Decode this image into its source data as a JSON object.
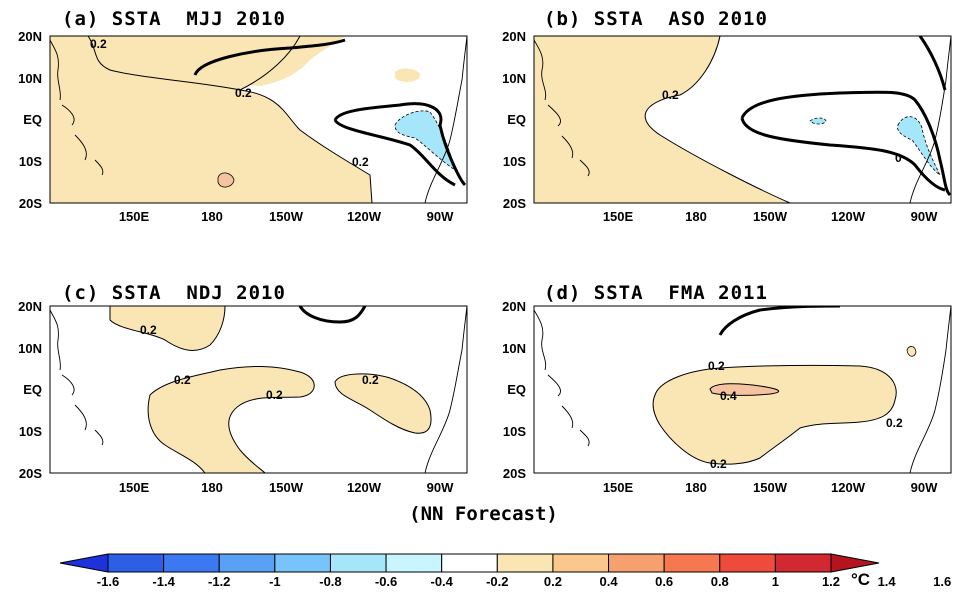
{
  "panels": [
    {
      "id": "a",
      "title": "(a) SSTA  MJJ 2010",
      "contour_labels": [
        "0.2",
        "0.2",
        "0.2"
      ]
    },
    {
      "id": "b",
      "title": "(b) SSTA  ASO 2010",
      "contour_labels": [
        "0.2",
        "0"
      ]
    },
    {
      "id": "c",
      "title": "(c) SSTA  NDJ 2010",
      "contour_labels": [
        "0.2",
        "0.2",
        "0.2",
        "0.2"
      ]
    },
    {
      "id": "d",
      "title": "(d) SSTA  FMA 2011",
      "contour_labels": [
        "0.2",
        "0.4",
        "0.2",
        "0.2"
      ]
    }
  ],
  "lat_labels": [
    "20N",
    "10N",
    "EQ",
    "10S",
    "20S"
  ],
  "lon_labels": [
    "150E",
    "180",
    "150W",
    "120W",
    "90W"
  ],
  "footer": "(NN Forecast)",
  "colorbar": {
    "labels": [
      "-1.6",
      "-1.4",
      "-1.2",
      "-1",
      "-0.8",
      "-0.6",
      "-0.4",
      "-0.2",
      "0.2",
      "0.4",
      "0.6",
      "0.8",
      "1",
      "1.2",
      "1.4",
      "1.6"
    ],
    "unit": "°C",
    "colors": [
      "#1e32dc",
      "#2d5fe6",
      "#3c78f0",
      "#5aa0f5",
      "#78c3fa",
      "#a5e6fa",
      "#c8f5ff",
      "#ffffff",
      "#fae6b4",
      "#fac88c",
      "#f5a06e",
      "#f57850",
      "#ee4b3c",
      "#d22832",
      "#b4141e"
    ]
  }
}
